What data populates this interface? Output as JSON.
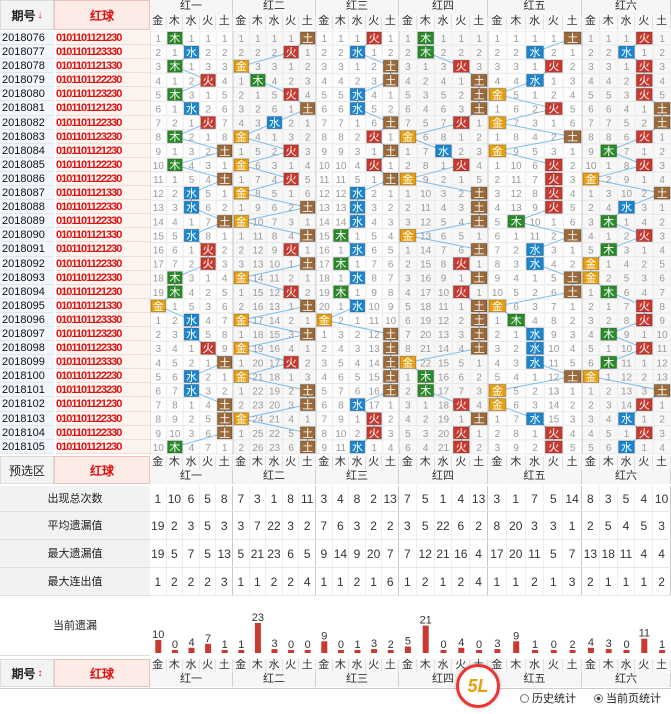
{
  "header": {
    "period_label": "期号",
    "sort_icon": "↓",
    "red_label": "红球"
  },
  "groups": [
    "红一",
    "红二",
    "红三",
    "红四",
    "红五",
    "红六"
  ],
  "elements": [
    "金",
    "木",
    "水",
    "火",
    "土"
  ],
  "element_colors": {
    "金": "#e8a010",
    "木": "#2a8a2a",
    "水": "#1a86d0",
    "火": "#c83a30",
    "土": "#9b6a3a"
  },
  "periods": [
    "2018076",
    "2018077",
    "2018078",
    "2018079",
    "2018080",
    "2018081",
    "2018082",
    "2018083",
    "2018084",
    "2018085",
    "2018086",
    "2018087",
    "2018088",
    "2018089",
    "2018090",
    "2018091",
    "2018092",
    "2018093",
    "2018094",
    "2018095",
    "2018096",
    "2018097",
    "2018098",
    "2018099",
    "2018100",
    "2018101",
    "2018102",
    "2018103",
    "2018104",
    "2018105"
  ],
  "red_balls": [
    "0101101121230",
    "0101101123330",
    "0101101121330",
    "0101101122230",
    "0101101123230",
    "0101101121230",
    "0101101122330",
    "0101101123230",
    "0101101121230",
    "0101101122230",
    "0101101122230",
    "0101101121330",
    "0101101122330",
    "0101101122330",
    "0101101121330",
    "0101101121230",
    "0101101122330",
    "0101101122330",
    "0101101121230",
    "0101101121330",
    "0101101123330",
    "0101101123230",
    "0101101122330",
    "0101101123330",
    "0101101122230",
    "0101101123230",
    "0101101121230",
    "0101101122330",
    "0101101122330",
    "0101101121230"
  ],
  "draws": [
    [
      "木",
      "土",
      "火",
      "木",
      "土",
      "火"
    ],
    [
      "水",
      "火",
      "水",
      "木",
      "水",
      "水"
    ],
    [
      "木",
      "金",
      "土",
      "火",
      "火",
      "火"
    ],
    [
      "火",
      "木",
      "土",
      "土",
      "水",
      "火"
    ],
    [
      "木",
      "火",
      "水",
      "土",
      "金",
      "火"
    ],
    [
      "水",
      "土",
      "水",
      "土",
      "火",
      "土"
    ],
    [
      "火",
      "水",
      "土",
      "火",
      "金",
      "土"
    ],
    [
      "木",
      "金",
      "火",
      "金",
      "土",
      "火"
    ],
    [
      "土",
      "火",
      "土",
      "水",
      "金",
      "木"
    ],
    [
      "木",
      "金",
      "火",
      "火",
      "火",
      "火"
    ],
    [
      "土",
      "火",
      "土",
      "金",
      "火",
      "金"
    ],
    [
      "水",
      "金",
      "水",
      "土",
      "火",
      "土"
    ],
    [
      "水",
      "土",
      "水",
      "土",
      "火",
      "水"
    ],
    [
      "土",
      "金",
      "水",
      "土",
      "木",
      "木"
    ],
    [
      "水",
      "土",
      "木",
      "金",
      "土",
      "火"
    ],
    [
      "火",
      "火",
      "水",
      "土",
      "水",
      "木"
    ],
    [
      "火",
      "土",
      "木",
      "火",
      "水",
      "金"
    ],
    [
      "木",
      "金",
      "水",
      "土",
      "土",
      "金"
    ],
    [
      "木",
      "火",
      "木",
      "火",
      "土",
      "木"
    ],
    [
      "金",
      "土",
      "水",
      "土",
      "金",
      "火"
    ],
    [
      "水",
      "金",
      "金",
      "土",
      "木",
      "火"
    ],
    [
      "水",
      "土",
      "土",
      "土",
      "水",
      "木"
    ],
    [
      "火",
      "金",
      "土",
      "土",
      "水",
      "火"
    ],
    [
      "土",
      "火",
      "土",
      "金",
      "水",
      "木"
    ],
    [
      "水",
      "金",
      "土",
      "木",
      "土",
      "金"
    ],
    [
      "水",
      "土",
      "土",
      "木",
      "金",
      "土"
    ],
    [
      "土",
      "土",
      "水",
      "火",
      "金",
      "火"
    ],
    [
      "土",
      "金",
      "火",
      "土",
      "水",
      "水"
    ],
    [
      "土",
      "土",
      "火",
      "火",
      "火",
      "火"
    ],
    [
      "木",
      "土",
      "水",
      "火",
      "火",
      "水"
    ]
  ],
  "stats": {
    "labels": [
      "出现总次数",
      "平均遗漏值",
      "最大遗漏值",
      "最大连出值",
      "当前遗漏"
    ],
    "rows": [
      [
        [
          1,
          10,
          6,
          5,
          8
        ],
        [
          7,
          3,
          1,
          8,
          11
        ],
        [
          3,
          4,
          8,
          2,
          13
        ],
        [
          7,
          5,
          1,
          4,
          13
        ],
        [
          3,
          1,
          7,
          5,
          14
        ],
        [
          8,
          3,
          5,
          4,
          10
        ]
      ],
      [
        [
          19,
          2,
          3,
          5,
          3
        ],
        [
          3,
          7,
          22,
          3,
          2
        ],
        [
          7,
          6,
          3,
          2,
          2
        ],
        [
          3,
          5,
          22,
          6,
          2
        ],
        [
          8,
          20,
          3,
          3,
          1
        ],
        [
          2,
          5,
          4,
          5,
          3
        ]
      ],
      [
        [
          19,
          5,
          7,
          5,
          13
        ],
        [
          5,
          21,
          23,
          6,
          5
        ],
        [
          9,
          14,
          9,
          20,
          7
        ],
        [
          7,
          12,
          21,
          16,
          4
        ],
        [
          17,
          20,
          11,
          5,
          7
        ],
        [
          13,
          18,
          11,
          4,
          4
        ]
      ],
      [
        [
          1,
          2,
          2,
          2,
          3
        ],
        [
          1,
          1,
          2,
          2,
          4
        ],
        [
          1,
          1,
          2,
          1,
          6
        ],
        [
          1,
          2,
          1,
          2,
          4
        ],
        [
          1,
          1,
          2,
          1,
          3
        ],
        [
          2,
          1,
          1,
          1,
          2
        ]
      ]
    ],
    "current": [
      [
        10,
        0,
        4,
        7,
        1
      ],
      [
        1,
        23,
        3,
        0,
        0
      ],
      [
        9,
        0,
        1,
        3,
        2
      ],
      [
        5,
        21,
        0,
        4,
        0
      ],
      [
        3,
        9,
        1,
        0,
        2
      ],
      [
        4,
        3,
        0,
        11,
        1
      ]
    ]
  },
  "forecast_label": "预选区",
  "footer": {
    "period_label": "期号",
    "sort_icon": "↕",
    "red_label": "红球"
  },
  "options": {
    "history_label": "历史统计",
    "current_label": "当前页统计"
  },
  "watermark": "5L"
}
